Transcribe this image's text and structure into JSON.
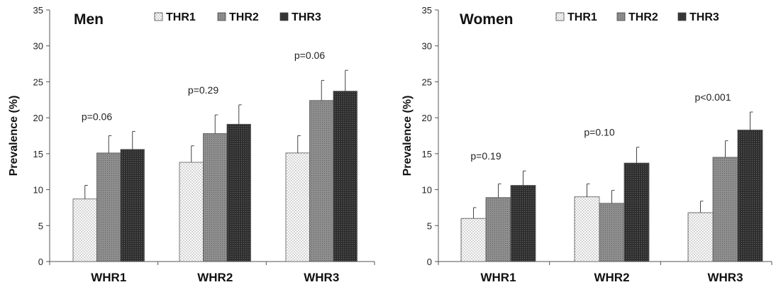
{
  "chart_data": [
    {
      "type": "bar",
      "title": "Men",
      "ylabel": "Prevalence (%)",
      "ylim": [
        0,
        35
      ],
      "yticks": [
        0,
        5,
        10,
        15,
        20,
        25,
        30,
        35
      ],
      "categories": [
        "WHR1",
        "WHR2",
        "WHR3"
      ],
      "series": [
        {
          "name": "THR1",
          "values": [
            8.7,
            13.8,
            15.1
          ],
          "errors": [
            1.9,
            2.3,
            2.4
          ]
        },
        {
          "name": "THR2",
          "values": [
            15.1,
            17.8,
            22.4
          ],
          "errors": [
            2.4,
            2.6,
            2.8
          ]
        },
        {
          "name": "THR3",
          "values": [
            15.6,
            19.1,
            23.7
          ],
          "errors": [
            2.5,
            2.7,
            2.9
          ]
        }
      ],
      "annotations": [
        "p=0.06",
        "p=0.29",
        "p=0.06"
      ],
      "legend_position": "top"
    },
    {
      "type": "bar",
      "title": "Women",
      "ylabel": "Prevalence (%)",
      "ylim": [
        0,
        35
      ],
      "yticks": [
        0,
        5,
        10,
        15,
        20,
        25,
        30,
        35
      ],
      "categories": [
        "WHR1",
        "WHR2",
        "WHR3"
      ],
      "series": [
        {
          "name": "THR1",
          "values": [
            6.0,
            9.0,
            6.8
          ],
          "errors": [
            1.5,
            1.8,
            1.6
          ]
        },
        {
          "name": "THR2",
          "values": [
            8.9,
            8.1,
            14.5
          ],
          "errors": [
            1.9,
            1.8,
            2.3
          ]
        },
        {
          "name": "THR3",
          "values": [
            10.6,
            13.7,
            18.3
          ],
          "errors": [
            2.0,
            2.2,
            2.5
          ]
        }
      ],
      "annotations": [
        "p=0.19",
        "p=0.10",
        "p<0.001"
      ],
      "legend_position": "top"
    }
  ],
  "colors": {
    "THR1": "#f4f4f4",
    "THR2": "#8a8a8a",
    "THR3": "#333333"
  }
}
